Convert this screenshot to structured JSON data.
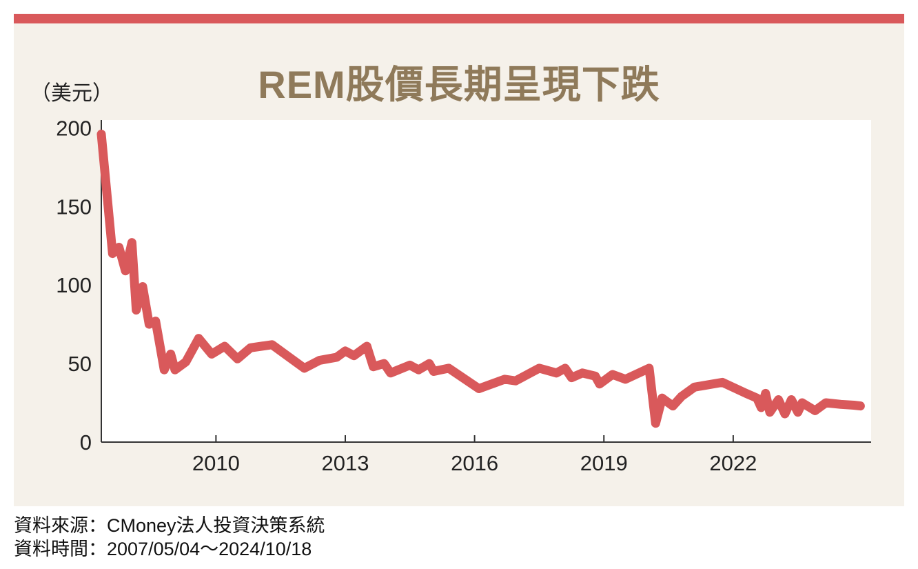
{
  "colors": {
    "accent": "#d9595b",
    "panel_bg": "#f5f1ea",
    "plot_bg": "#ffffff",
    "title": "#8f7a5a",
    "axis": "#333333"
  },
  "title": "REM股價長期呈現下跌",
  "unit_label": "（美元）",
  "source": {
    "line1": "資料來源：CMoney法人投資決策系統",
    "line2": "資料時間：2007/05/04～2024/10/18"
  },
  "chart_data": {
    "type": "line",
    "title": "REM股價長期呈現下跌",
    "ylabel": "（美元）",
    "xlabel": "",
    "xlim": [
      2007.34,
      2025.2
    ],
    "ylim": [
      0,
      205
    ],
    "yticks": [
      0,
      50,
      100,
      150,
      200
    ],
    "xticks": [
      2010,
      2013,
      2016,
      2019,
      2022
    ],
    "grid": false,
    "legend": "none",
    "series": [
      {
        "values": [
          [
            2007.34,
            196
          ],
          [
            2007.6,
            120
          ],
          [
            2007.75,
            124
          ],
          [
            2007.9,
            109
          ],
          [
            2008.05,
            127
          ],
          [
            2008.15,
            84
          ],
          [
            2008.3,
            99
          ],
          [
            2008.45,
            75
          ],
          [
            2008.6,
            77
          ],
          [
            2008.8,
            46
          ],
          [
            2008.95,
            56
          ],
          [
            2009.05,
            46
          ],
          [
            2009.3,
            51
          ],
          [
            2009.6,
            66
          ],
          [
            2009.9,
            56
          ],
          [
            2010.2,
            61
          ],
          [
            2010.5,
            53
          ],
          [
            2010.8,
            60
          ],
          [
            2011.3,
            62
          ],
          [
            2011.8,
            52
          ],
          [
            2012.05,
            47
          ],
          [
            2012.4,
            52
          ],
          [
            2012.8,
            54
          ],
          [
            2013.0,
            58
          ],
          [
            2013.2,
            55
          ],
          [
            2013.5,
            61
          ],
          [
            2013.65,
            48
          ],
          [
            2013.9,
            50
          ],
          [
            2014.05,
            44
          ],
          [
            2014.5,
            49
          ],
          [
            2014.7,
            46
          ],
          [
            2014.95,
            50
          ],
          [
            2015.05,
            45
          ],
          [
            2015.4,
            47
          ],
          [
            2016.1,
            34
          ],
          [
            2016.7,
            40
          ],
          [
            2016.95,
            39
          ],
          [
            2017.5,
            47
          ],
          [
            2017.9,
            44
          ],
          [
            2018.1,
            47
          ],
          [
            2018.25,
            41
          ],
          [
            2018.5,
            44
          ],
          [
            2018.8,
            42
          ],
          [
            2018.9,
            37
          ],
          [
            2019.2,
            43
          ],
          [
            2019.5,
            40
          ],
          [
            2020.05,
            47
          ],
          [
            2020.2,
            12
          ],
          [
            2020.35,
            28
          ],
          [
            2020.6,
            23
          ],
          [
            2020.8,
            29
          ],
          [
            2021.1,
            35
          ],
          [
            2021.75,
            38
          ],
          [
            2022.3,
            31
          ],
          [
            2022.55,
            28
          ],
          [
            2022.65,
            22
          ],
          [
            2022.75,
            31
          ],
          [
            2022.85,
            19
          ],
          [
            2023.05,
            27
          ],
          [
            2023.2,
            18
          ],
          [
            2023.35,
            27
          ],
          [
            2023.5,
            19
          ],
          [
            2023.6,
            25
          ],
          [
            2023.9,
            20
          ],
          [
            2024.15,
            25
          ],
          [
            2024.5,
            24
          ],
          [
            2024.8,
            23.5
          ],
          [
            2024.95,
            23
          ]
        ]
      }
    ]
  }
}
